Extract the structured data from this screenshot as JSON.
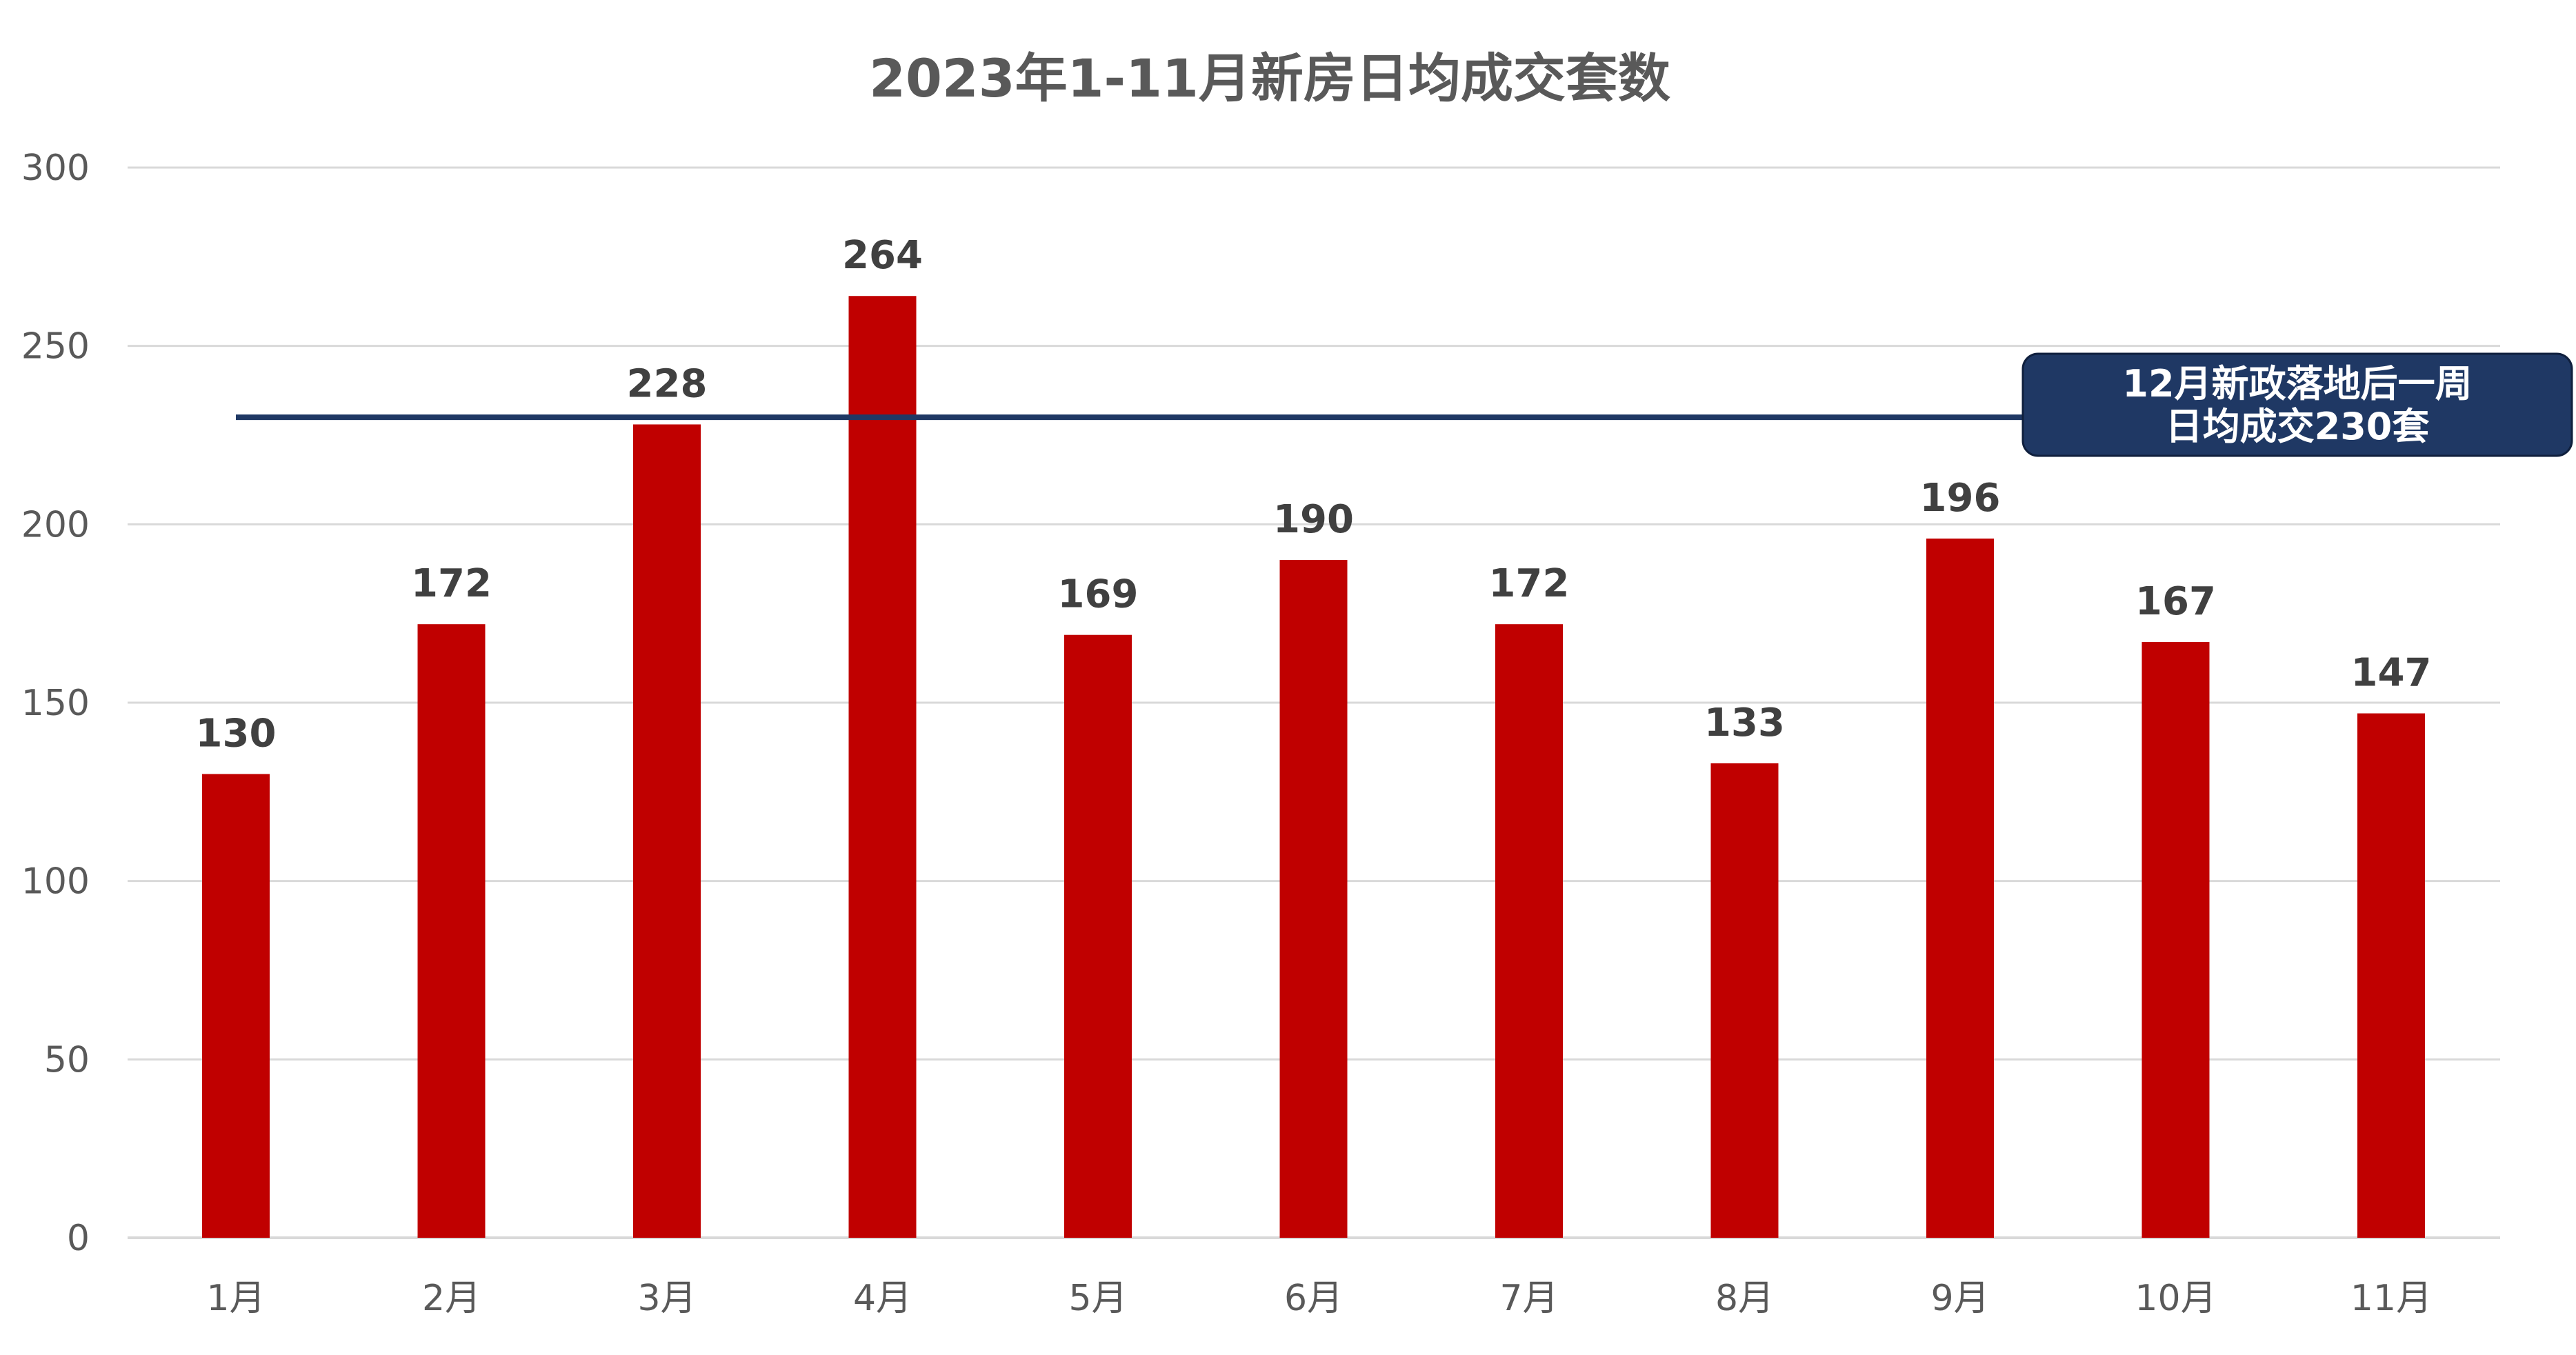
{
  "chart_data": {
    "type": "bar",
    "title": "2023年1-11月新房日均成交套数",
    "categories": [
      "1月",
      "2月",
      "3月",
      "4月",
      "5月",
      "6月",
      "7月",
      "8月",
      "9月",
      "10月",
      "11月"
    ],
    "values": [
      130,
      172,
      228,
      264,
      169,
      190,
      172,
      133,
      196,
      167,
      147
    ],
    "ylim": [
      0,
      300
    ],
    "yticks": [
      0,
      50,
      100,
      150,
      200,
      250,
      300
    ],
    "grid": true,
    "bar_color": "#c00000",
    "reference_line": {
      "value": 230,
      "color": "#1f3864",
      "label_lines": [
        "12月新政落地后一周",
        "日均成交230套"
      ]
    }
  }
}
